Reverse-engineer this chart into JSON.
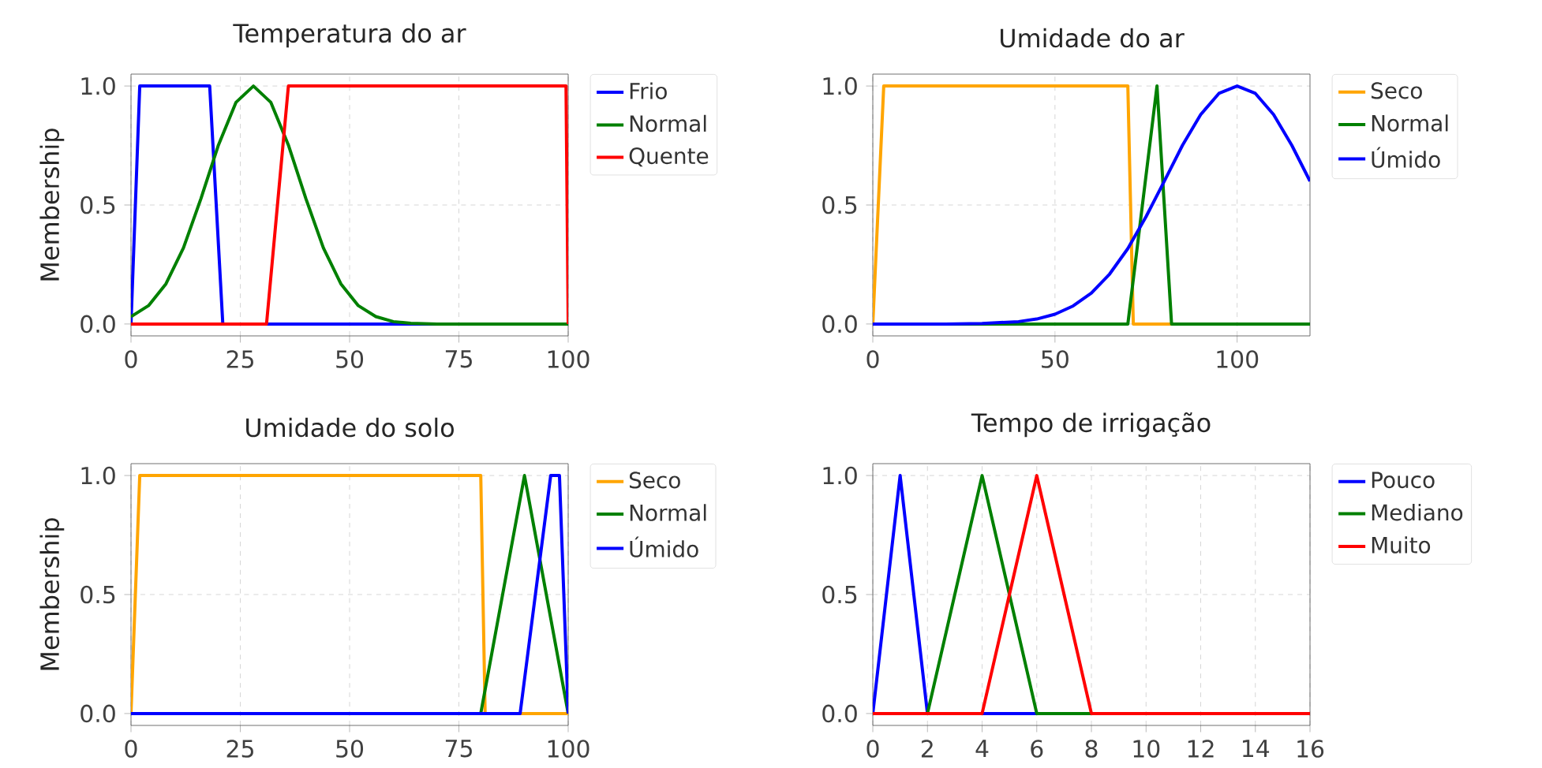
{
  "chart_data": [
    {
      "type": "line",
      "title": "Temperatura do ar",
      "ylabel": "Membership",
      "xlim": [
        0,
        100
      ],
      "ylim": [
        -0.05,
        1.05
      ],
      "xticks": [
        0,
        25,
        50,
        75,
        100
      ],
      "yticks": [
        {
          "value": 0,
          "label": "0.0"
        },
        {
          "value": 0.5,
          "label": "0.5"
        },
        {
          "value": 1,
          "label": "1.0"
        }
      ],
      "grid": true,
      "legend": "right",
      "series": [
        {
          "name": "Frio",
          "color": "#0000ff",
          "x": [
            0,
            2,
            18,
            21,
            100
          ],
          "values": [
            0,
            1,
            1,
            0,
            0
          ]
        },
        {
          "name": "Normal",
          "color": "#008000",
          "x": [
            0,
            4,
            8,
            12,
            16,
            20,
            24,
            28,
            32,
            36,
            40,
            44,
            48,
            52,
            56,
            60,
            64,
            70,
            100
          ],
          "values": [
            0.031,
            0.077,
            0.169,
            0.32,
            0.527,
            0.752,
            0.931,
            1,
            0.931,
            0.752,
            0.527,
            0.32,
            0.169,
            0.077,
            0.031,
            0.01,
            0.003,
            0,
            0
          ]
        },
        {
          "name": "Quente",
          "color": "#ff0000",
          "x": [
            0,
            31,
            36,
            99.5,
            100
          ],
          "values": [
            0,
            0,
            1,
            1,
            0
          ]
        }
      ]
    },
    {
      "type": "line",
      "title": "Umidade do ar",
      "xlim": [
        0,
        120
      ],
      "ylim": [
        -0.05,
        1.05
      ],
      "xticks": [
        0,
        50,
        100
      ],
      "yticks": [
        {
          "value": 0,
          "label": "0.0"
        },
        {
          "value": 0.5,
          "label": "0.5"
        },
        {
          "value": 1,
          "label": "1.0"
        }
      ],
      "grid": true,
      "legend": "right",
      "series": [
        {
          "name": "Seco",
          "color": "#ffa500",
          "x": [
            0,
            3,
            70,
            71.5,
            120
          ],
          "values": [
            0,
            1,
            1,
            0,
            0
          ]
        },
        {
          "name": "Normal",
          "color": "#008000",
          "x": [
            0,
            70,
            78,
            82,
            120
          ],
          "values": [
            0,
            0,
            1,
            0,
            0
          ]
        },
        {
          "name": "Úmido",
          "color": "#0000ff",
          "x": [
            0,
            20,
            30,
            40,
            45,
            50,
            55,
            60,
            65,
            70,
            75,
            80,
            85,
            90,
            95,
            100,
            105,
            110,
            115,
            120
          ],
          "values": [
            0,
            0,
            0.002,
            0.01,
            0.021,
            0.041,
            0.076,
            0.13,
            0.21,
            0.317,
            0.451,
            0.6,
            0.751,
            0.88,
            0.969,
            1,
            0.969,
            0.88,
            0.751,
            0.6
          ]
        }
      ]
    },
    {
      "type": "line",
      "title": "Umidade do solo",
      "ylabel": "Membership",
      "xlim": [
        0,
        100
      ],
      "ylim": [
        -0.05,
        1.05
      ],
      "xticks": [
        0,
        25,
        50,
        75,
        100
      ],
      "yticks": [
        {
          "value": 0,
          "label": "0.0"
        },
        {
          "value": 0.5,
          "label": "0.5"
        },
        {
          "value": 1,
          "label": "1.0"
        }
      ],
      "grid": true,
      "legend": "right",
      "series": [
        {
          "name": "Seco",
          "color": "#ffa500",
          "x": [
            0,
            2,
            80,
            81,
            100
          ],
          "values": [
            0,
            1,
            1,
            0,
            0
          ]
        },
        {
          "name": "Normal",
          "color": "#008000",
          "x": [
            0,
            80,
            90,
            100
          ],
          "values": [
            0,
            0,
            1,
            0
          ]
        },
        {
          "name": "Úmido",
          "color": "#0000ff",
          "x": [
            0,
            89,
            96,
            98,
            100
          ],
          "values": [
            0,
            0,
            1,
            1,
            0
          ]
        }
      ]
    },
    {
      "type": "line",
      "title": "Tempo de irrigação",
      "xlim": [
        0,
        16
      ],
      "ylim": [
        -0.05,
        1.05
      ],
      "xticks": [
        0,
        2,
        4,
        6,
        8,
        10,
        12,
        14,
        16
      ],
      "yticks": [
        {
          "value": 0,
          "label": "0.0"
        },
        {
          "value": 0.5,
          "label": "0.5"
        },
        {
          "value": 1,
          "label": "1.0"
        }
      ],
      "grid": true,
      "legend": "right",
      "series": [
        {
          "name": "Pouco",
          "color": "#0000ff",
          "x": [
            0,
            1,
            2,
            16
          ],
          "values": [
            0,
            1,
            0,
            0
          ]
        },
        {
          "name": "Mediano",
          "color": "#008000",
          "x": [
            0,
            2,
            4,
            6,
            16
          ],
          "values": [
            0,
            0,
            1,
            0,
            0
          ]
        },
        {
          "name": "Muito",
          "color": "#ff0000",
          "x": [
            0,
            4,
            6,
            8,
            16
          ],
          "values": [
            0,
            0,
            1,
            0,
            0
          ]
        }
      ]
    }
  ]
}
